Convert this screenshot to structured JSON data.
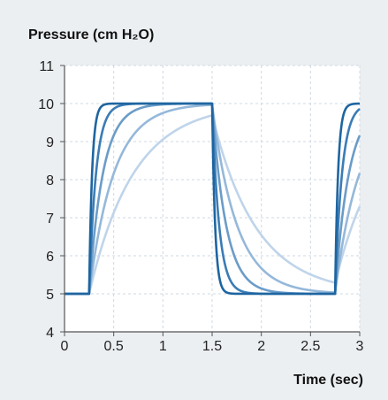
{
  "chart_data": {
    "type": "line",
    "ylabel": "Pressure (cm H₂O)",
    "xlabel": "Time (sec)",
    "xlim": [
      0,
      3
    ],
    "ylim": [
      4,
      11
    ],
    "x_ticks": [
      0,
      0.5,
      1,
      1.5,
      2,
      2.5,
      3
    ],
    "x_tick_labels": [
      "0",
      "0.5",
      "1",
      "1.5",
      "2",
      "2.5",
      "3"
    ],
    "y_ticks": [
      4,
      5,
      6,
      7,
      8,
      9,
      10,
      11
    ],
    "y_tick_labels": [
      "4",
      "5",
      "6",
      "7",
      "8",
      "9",
      "10",
      "11"
    ],
    "grid": true,
    "legend": "none",
    "waveform": {
      "baseline": 5,
      "peak": 10,
      "rise_start": 0.25,
      "fall_start": 1.5,
      "second_rise_start": 2.75
    },
    "series": [
      {
        "time_constant": 0.03,
        "color": "#1e65a0"
      },
      {
        "time_constant": 0.07,
        "color": "#3b7cb5"
      },
      {
        "time_constant": 0.14,
        "color": "#6b9cc8"
      },
      {
        "time_constant": 0.25,
        "color": "#95b8da"
      },
      {
        "time_constant": 0.45,
        "color": "#bfd4ea"
      }
    ]
  }
}
